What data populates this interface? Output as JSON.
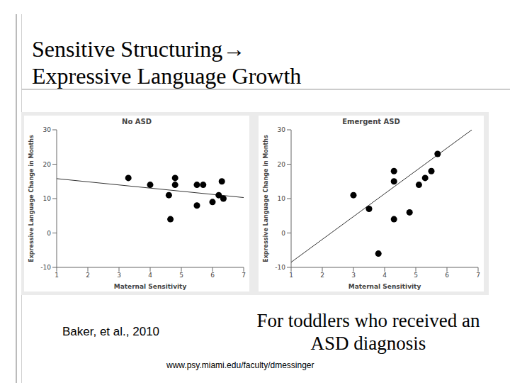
{
  "slide": {
    "title_lines": [
      "Sensitive Structuring→",
      "Expressive Language Growth"
    ],
    "citation": "Baker, et al., 2010",
    "caption": "For toddlers who received an ASD diagnosis",
    "url": "www.psy.miami.edu/faculty/dmessinger"
  },
  "chart_data": [
    {
      "type": "scatter",
      "title": "No ASD",
      "x_label": "Maternal Sensitivity",
      "y_label": "Expressive Language Change in Months",
      "x": [
        3.3,
        4.0,
        4.6,
        4.65,
        4.8,
        4.8,
        5.5,
        5.5,
        5.7,
        6.0,
        6.2,
        6.3,
        6.35
      ],
      "values": [
        16,
        14,
        11,
        4,
        16,
        14,
        14,
        8,
        14,
        9,
        11,
        15,
        10
      ],
      "trend": {
        "x": [
          1,
          7
        ],
        "values": [
          15.8,
          10.3
        ]
      },
      "color": "#000000",
      "marker": "circle",
      "xlim": [
        1,
        7
      ],
      "ylim": [
        -10,
        30
      ],
      "xticks": [
        1,
        2,
        3,
        4,
        5,
        6,
        7
      ],
      "yticks": [
        -10,
        0,
        10,
        20,
        30
      ]
    },
    {
      "type": "scatter",
      "title": "Emergent ASD",
      "x_label": "Maternal Sensitivity",
      "y_label": "Expressive Language Change in Months",
      "x": [
        3.0,
        3.5,
        3.8,
        4.3,
        4.3,
        4.3,
        4.8,
        5.1,
        5.3,
        5.5,
        5.7
      ],
      "values": [
        11,
        7,
        -6,
        18,
        15,
        4,
        6,
        14,
        16,
        18,
        23
      ],
      "trend": {
        "x": [
          1,
          6.8
        ],
        "values": [
          -8.5,
          30
        ]
      },
      "color": "#000000",
      "marker": "circle",
      "xlim": [
        1,
        7
      ],
      "ylim": [
        -10,
        30
      ],
      "xticks": [
        1,
        2,
        3,
        4,
        5,
        6,
        7
      ],
      "yticks": [
        -10,
        0,
        10,
        20,
        30
      ]
    }
  ]
}
